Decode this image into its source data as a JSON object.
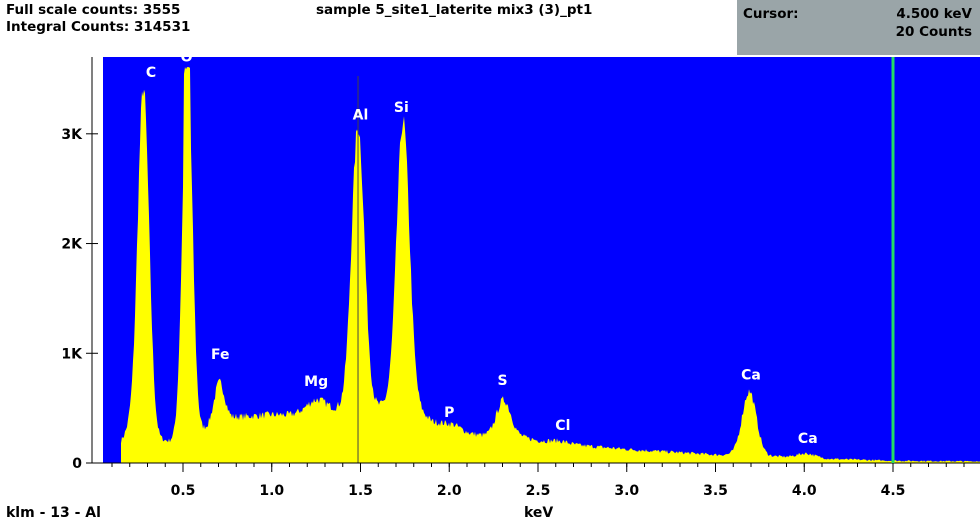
{
  "header": {
    "full_scale": "Full scale counts: 3555",
    "integral": "Integral Counts: 314531",
    "title": "sample 5_site1_laterite mix3 (3)_pt1"
  },
  "cursor": {
    "label": "Cursor:",
    "energy": "4.500 keV",
    "counts": "20 Counts"
  },
  "footer": {
    "marker_info": "klm - 13 - Al"
  },
  "colors": {
    "plot_bg": "#0000ff",
    "spectrum": "#ffff00",
    "cursor_line": "#22dd66",
    "marker_line": "#444444"
  },
  "chart_data": {
    "type": "area",
    "title": "sample 5_site1_laterite mix3 (3)_pt1",
    "xlabel": "keV",
    "ylabel": "",
    "xlim": [
      0.0,
      4.95
    ],
    "ylim": [
      0,
      3700
    ],
    "x_ticks": [
      0.5,
      1.0,
      1.5,
      2.0,
      2.5,
      3.0,
      3.5,
      4.0,
      4.5
    ],
    "x_tick_labels": [
      "0.5",
      "1.0",
      "1.5",
      "2.0",
      "2.5",
      "3.0",
      "3.5",
      "4.0",
      "4.5"
    ],
    "y_ticks": [
      0,
      1000,
      2000,
      3000
    ],
    "y_tick_labels": [
      "0",
      "1K",
      "2K",
      "3K"
    ],
    "cursor_kev": 4.5,
    "marker_kev": 1.486,
    "spectrum_start_kev": 0.15,
    "background": [
      [
        0.15,
        200
      ],
      [
        0.2,
        330
      ],
      [
        0.3,
        250
      ],
      [
        0.35,
        220
      ],
      [
        0.42,
        200
      ],
      [
        0.6,
        300
      ],
      [
        0.8,
        420
      ],
      [
        1.0,
        440
      ],
      [
        1.1,
        440
      ],
      [
        1.2,
        470
      ],
      [
        1.35,
        490
      ],
      [
        1.42,
        520
      ],
      [
        1.6,
        520
      ],
      [
        1.68,
        560
      ],
      [
        1.82,
        510
      ],
      [
        1.9,
        380
      ],
      [
        2.0,
        300
      ],
      [
        2.1,
        270
      ],
      [
        2.2,
        250
      ],
      [
        2.4,
        240
      ],
      [
        2.5,
        205
      ],
      [
        2.6,
        185
      ],
      [
        2.7,
        165
      ],
      [
        3.0,
        125
      ],
      [
        3.3,
        95
      ],
      [
        3.5,
        75
      ],
      [
        3.6,
        75
      ],
      [
        3.75,
        70
      ],
      [
        3.9,
        55
      ],
      [
        4.1,
        40
      ],
      [
        4.3,
        30
      ],
      [
        4.5,
        20
      ],
      [
        4.95,
        15
      ]
    ],
    "peaks": [
      {
        "label": "C",
        "kev": 0.277,
        "height": 3150,
        "width": 0.032
      },
      {
        "label": "O",
        "kev": 0.525,
        "height": 3350,
        "width": 0.028,
        "flat_top": true
      },
      {
        "label": "Fe",
        "kev": 0.705,
        "height": 370,
        "width": 0.03
      },
      {
        "label": "Mg",
        "kev": 1.254,
        "height": 100,
        "width": 0.05
      },
      {
        "label": "Al",
        "kev": 1.486,
        "height": 2550,
        "width": 0.036
      },
      {
        "label": "Si",
        "kev": 1.74,
        "height": 2580,
        "width": 0.036
      },
      {
        "label": "P",
        "kev": 2.013,
        "height": 60,
        "width": 0.05
      },
      {
        "label": "S",
        "kev": 2.307,
        "height": 330,
        "width": 0.04
      },
      {
        "label": "Cl",
        "kev": 2.622,
        "height": 20,
        "width": 0.05
      },
      {
        "label": "Ca",
        "kev": 3.69,
        "height": 580,
        "width": 0.04
      },
      {
        "label": "Ca",
        "kev": 4.012,
        "height": 40,
        "width": 0.05
      }
    ],
    "peak_labels": [
      {
        "text": "C",
        "kev": 0.32,
        "counts": 3520
      },
      {
        "text": "O",
        "kev": 0.52,
        "counts": 3660
      },
      {
        "text": "Fe",
        "kev": 0.71,
        "counts": 950
      },
      {
        "text": "Mg",
        "kev": 1.25,
        "counts": 700
      },
      {
        "text": "Al",
        "kev": 1.5,
        "counts": 3130
      },
      {
        "text": "Si",
        "kev": 1.73,
        "counts": 3200
      },
      {
        "text": "P",
        "kev": 2.0,
        "counts": 420
      },
      {
        "text": "S",
        "kev": 2.3,
        "counts": 710
      },
      {
        "text": "Cl",
        "kev": 2.64,
        "counts": 300
      },
      {
        "text": "Ca",
        "kev": 3.7,
        "counts": 760
      },
      {
        "text": "Ca",
        "kev": 4.02,
        "counts": 180
      }
    ]
  }
}
